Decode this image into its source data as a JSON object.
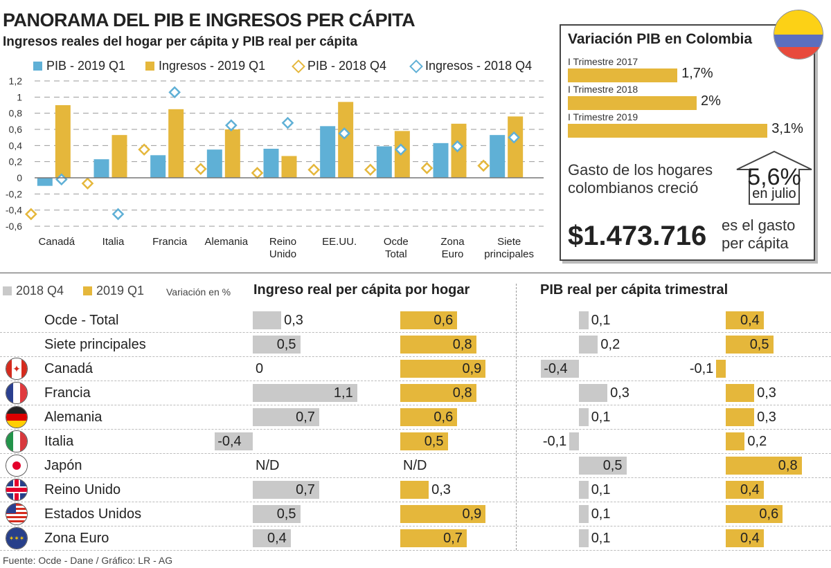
{
  "title": "PANORAMA DEL PIB E INGRESOS PER CÁPITA",
  "subtitle": "Ingresos reales del hogar per cápita y PIB real per cápita",
  "colors": {
    "blue": "#5fb0d6",
    "gold": "#e5b73b",
    "gray": "#c9c9c9"
  },
  "chart_data": [
    {
      "type": "bar",
      "categories": [
        "Canadá",
        "Italia",
        "Francia",
        "Alemania",
        "Reino Unido",
        "EE.UU.",
        "Ocde Total",
        "Zona Euro",
        "Siete principales"
      ],
      "series": [
        {
          "name": "PIB - 2019 Q1",
          "kind": "bar",
          "color": "#5fb0d6",
          "values": [
            -0.1,
            0.23,
            0.28,
            0.35,
            0.36,
            0.64,
            0.39,
            0.43,
            0.53
          ]
        },
        {
          "name": "Ingresos - 2019 Q1",
          "kind": "bar",
          "color": "#e5b73b",
          "values": [
            0.9,
            0.53,
            0.85,
            0.6,
            0.27,
            0.94,
            0.58,
            0.67,
            0.76
          ]
        },
        {
          "name": "PIB - 2018 Q4",
          "kind": "diamond",
          "color": "#e5b73b",
          "values": [
            -0.45,
            -0.07,
            0.35,
            0.11,
            0.06,
            0.1,
            0.1,
            0.12,
            0.15
          ]
        },
        {
          "name": "Ingresos - 2018 Q4",
          "kind": "diamond",
          "color": "#5fb0d6",
          "values": [
            -0.02,
            -0.45,
            1.06,
            0.65,
            0.68,
            0.55,
            0.35,
            0.39,
            0.5
          ]
        }
      ],
      "yticks": [
        "1,2",
        "1",
        "0,8",
        "0,6",
        "0,4",
        "0,2",
        "0",
        "-0,2",
        "-0,4",
        "-0,6"
      ],
      "ylim": [
        -0.6,
        1.2
      ],
      "grid": true
    },
    {
      "type": "bar",
      "title": "Variación PIB en Colombia",
      "categories": [
        "I Trimestre 2017",
        "I Trimestre 2018",
        "I Trimestre 2019"
      ],
      "values": [
        1.7,
        2,
        3.1
      ],
      "labels": [
        "1,7%",
        "2%",
        "3,1%"
      ]
    },
    {
      "type": "table",
      "legend": [
        "2018 Q4",
        "2019 Q1"
      ],
      "note": "Variación en %",
      "groups": [
        "Ingreso real per cápita por hogar",
        "PIB real per cápita trimestral"
      ],
      "rows": [
        {
          "name": "Ocde - Total",
          "flag": "",
          "ing": [
            0.3,
            0.6
          ],
          "pib": [
            0.1,
            0.4
          ],
          "t": [
            "0,3",
            "0,6",
            "0,1",
            "0,4"
          ]
        },
        {
          "name": "Siete principales",
          "flag": "",
          "ing": [
            0.5,
            0.8
          ],
          "pib": [
            0.2,
            0.5
          ],
          "t": [
            "0,5",
            "0,8",
            "0,2",
            "0,5"
          ]
        },
        {
          "name": "Canadá",
          "flag": "canada",
          "ing": [
            0,
            0.9
          ],
          "pib": [
            -0.4,
            -0.1
          ],
          "t": [
            "0",
            "0,9",
            "-0,4",
            "-0,1"
          ]
        },
        {
          "name": "Francia",
          "flag": "france",
          "ing": [
            1.1,
            0.8
          ],
          "pib": [
            0.3,
            0.3
          ],
          "t": [
            "1,1",
            "0,8",
            "0,3",
            "0,3"
          ]
        },
        {
          "name": "Alemania",
          "flag": "germany",
          "ing": [
            0.7,
            0.6
          ],
          "pib": [
            0.1,
            0.3
          ],
          "t": [
            "0,7",
            "0,6",
            "0,1",
            "0,3"
          ]
        },
        {
          "name": "Italia",
          "flag": "italy",
          "ing": [
            -0.4,
            0.5
          ],
          "pib": [
            -0.1,
            0.2
          ],
          "t": [
            "-0,4",
            "0,5",
            "-0,1",
            "0,2"
          ]
        },
        {
          "name": "Japón",
          "flag": "japan",
          "ing": [
            null,
            null
          ],
          "pib": [
            0.5,
            0.8
          ],
          "t": [
            "N/D",
            "N/D",
            "0,5",
            "0,8"
          ]
        },
        {
          "name": "Reino Unido",
          "flag": "uk",
          "ing": [
            0.7,
            0.3
          ],
          "pib": [
            0.1,
            0.4
          ],
          "t": [
            "0,7",
            "0,3",
            "0,1",
            "0,4"
          ]
        },
        {
          "name": "Estados Unidos",
          "flag": "usa",
          "ing": [
            0.5,
            0.9
          ],
          "pib": [
            0.1,
            0.6
          ],
          "t": [
            "0,5",
            "0,9",
            "0,1",
            "0,6"
          ]
        },
        {
          "name": "Zona Euro",
          "flag": "eu",
          "ing": [
            0.4,
            0.7
          ],
          "pib": [
            0.1,
            0.4
          ],
          "t": [
            "0,4",
            "0,7",
            "0,1",
            "0,4"
          ]
        }
      ]
    }
  ],
  "colombia": {
    "gasto_label": "Gasto de los hogares colombianos creció",
    "gasto_value": "5,6%",
    "gasto_period": "en julio",
    "per_capita": "$1.473.716",
    "per_capita_label": "es el gasto per cápita"
  },
  "source": "Fuente: Ocde - Dane / Gráfico: LR - AG"
}
